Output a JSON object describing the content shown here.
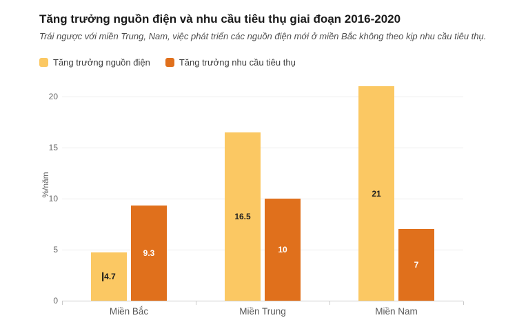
{
  "title": "Tăng trưởng nguồn điện và nhu cầu tiêu thụ giai đoạn 2016-2020",
  "subtitle": "Trái ngược với miền Trung, Nam, việc phát triển các nguồn điện mới ở miền Bắc không theo kịp nhu cầu tiêu thụ.",
  "legend": [
    {
      "label": "Tăng trưởng nguồn điện",
      "color": "#FBC863"
    },
    {
      "label": "Tăng trưởng nhu cầu tiêu thụ",
      "color": "#E0701C"
    }
  ],
  "chart_data": {
    "type": "bar",
    "categories": [
      "Miền Bắc",
      "Miền Trung",
      "Miền Nam"
    ],
    "series": [
      {
        "name": "Tăng trưởng nguồn điện",
        "color": "#FBC863",
        "label_color": "#1f1f1f",
        "values": [
          4.7,
          16.5,
          21
        ]
      },
      {
        "name": "Tăng trưởng nhu cầu tiêu thụ",
        "color": "#E0701C",
        "label_color": "#ffffff",
        "values": [
          9.3,
          10,
          7
        ]
      }
    ],
    "value_labels": [
      [
        "4.7",
        "16.5",
        "21"
      ],
      [
        "9.3",
        "10",
        "7"
      ]
    ],
    "text_cursor_artifact": {
      "series_index": 0,
      "category_index": 0
    },
    "title": "Tăng trưởng nguồn điện và nhu cầu tiêu thụ giai đoạn 2016-2020",
    "xlabel": "",
    "ylabel": "%/năm",
    "yticks": [
      0,
      5,
      10,
      15,
      20
    ],
    "ylim": [
      0,
      21.5
    ],
    "grid": true,
    "legend_position": "top-left"
  }
}
